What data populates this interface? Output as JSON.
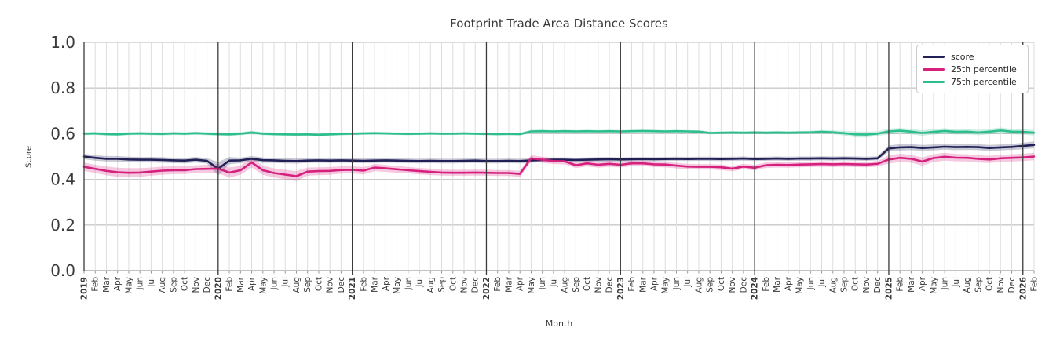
{
  "chart_data": {
    "type": "line",
    "title": "Footprint Trade Area Distance Scores",
    "xlabel": "Month",
    "ylabel": "Score",
    "ylim": [
      0.0,
      1.0
    ],
    "yticks": [
      "0.0",
      "0.2",
      "0.4",
      "0.6",
      "0.8",
      "1.0"
    ],
    "grid": true,
    "legend_position": "upper right",
    "categories": [
      "2019",
      "Feb",
      "Mar",
      "Apr",
      "May",
      "Jun",
      "Jul",
      "Aug",
      "Sep",
      "Oct",
      "Nov",
      "Dec",
      "2020",
      "Feb",
      "Mar",
      "Apr",
      "May",
      "Jun",
      "Jul",
      "Aug",
      "Sep",
      "Oct",
      "Nov",
      "Dec",
      "2021",
      "Feb",
      "Mar",
      "Apr",
      "May",
      "Jun",
      "Jul",
      "Aug",
      "Sep",
      "Oct",
      "Nov",
      "Dec",
      "2022",
      "Feb",
      "Mar",
      "Apr",
      "May",
      "Jun",
      "Jul",
      "Aug",
      "Sep",
      "Oct",
      "Nov",
      "Dec",
      "2023",
      "Feb",
      "Mar",
      "Apr",
      "May",
      "Jun",
      "Jul",
      "Aug",
      "Sep",
      "Oct",
      "Nov",
      "Dec",
      "2024",
      "Feb",
      "Mar",
      "Apr",
      "May",
      "Jun",
      "Jul",
      "Aug",
      "Sep",
      "Oct",
      "Nov",
      "Dec",
      "2025",
      "Feb",
      "Mar",
      "Apr",
      "May",
      "Jun",
      "Jul",
      "Aug",
      "Sep",
      "Oct",
      "Nov",
      "Dec",
      "2026",
      "Feb"
    ],
    "series": [
      {
        "name": "score",
        "color": "#212157",
        "values": [
          0.5,
          0.494,
          0.49,
          0.49,
          0.487,
          0.486,
          0.486,
          0.485,
          0.483,
          0.482,
          0.486,
          0.481,
          0.446,
          0.482,
          0.483,
          0.49,
          0.484,
          0.483,
          0.481,
          0.48,
          0.482,
          0.483,
          0.482,
          0.483,
          0.482,
          0.481,
          0.482,
          0.483,
          0.482,
          0.481,
          0.48,
          0.481,
          0.48,
          0.48,
          0.481,
          0.482,
          0.48,
          0.48,
          0.481,
          0.48,
          0.483,
          0.485,
          0.486,
          0.486,
          0.485,
          0.486,
          0.487,
          0.488,
          0.487,
          0.488,
          0.489,
          0.488,
          0.489,
          0.49,
          0.489,
          0.49,
          0.49,
          0.489,
          0.49,
          0.491,
          0.489,
          0.49,
          0.491,
          0.49,
          0.491,
          0.491,
          0.492,
          0.491,
          0.492,
          0.491,
          0.49,
          0.492,
          0.535,
          0.54,
          0.541,
          0.537,
          0.54,
          0.543,
          0.541,
          0.542,
          0.541,
          0.537,
          0.54,
          0.542,
          0.546,
          0.551
        ],
        "band": [
          0.012,
          0.012,
          0.012,
          0.012,
          0.012,
          0.012,
          0.012,
          0.012,
          0.012,
          0.012,
          0.012,
          0.012,
          0.03,
          0.016,
          0.012,
          0.012,
          0.012,
          0.011,
          0.011,
          0.011,
          0.01,
          0.01,
          0.01,
          0.01,
          0.01,
          0.01,
          0.01,
          0.01,
          0.01,
          0.01,
          0.01,
          0.01,
          0.01,
          0.01,
          0.01,
          0.01,
          0.01,
          0.01,
          0.01,
          0.01,
          0.01,
          0.01,
          0.01,
          0.01,
          0.01,
          0.01,
          0.01,
          0.01,
          0.009,
          0.009,
          0.009,
          0.009,
          0.009,
          0.009,
          0.009,
          0.009,
          0.009,
          0.009,
          0.009,
          0.009,
          0.009,
          0.009,
          0.009,
          0.009,
          0.009,
          0.009,
          0.009,
          0.009,
          0.009,
          0.009,
          0.009,
          0.009,
          0.014,
          0.014,
          0.013,
          0.014,
          0.013,
          0.013,
          0.013,
          0.013,
          0.013,
          0.014,
          0.013,
          0.013,
          0.014,
          0.015
        ]
      },
      {
        "name": "25th percentile",
        "color": "#D6207E",
        "values": [
          0.455,
          0.446,
          0.437,
          0.431,
          0.429,
          0.43,
          0.434,
          0.438,
          0.44,
          0.44,
          0.445,
          0.446,
          0.447,
          0.43,
          0.44,
          0.474,
          0.44,
          0.428,
          0.421,
          0.414,
          0.434,
          0.436,
          0.437,
          0.441,
          0.442,
          0.438,
          0.452,
          0.448,
          0.444,
          0.44,
          0.436,
          0.433,
          0.43,
          0.429,
          0.429,
          0.43,
          0.429,
          0.428,
          0.428,
          0.424,
          0.492,
          0.486,
          0.48,
          0.479,
          0.462,
          0.47,
          0.464,
          0.468,
          0.464,
          0.47,
          0.47,
          0.466,
          0.465,
          0.46,
          0.456,
          0.455,
          0.455,
          0.453,
          0.447,
          0.456,
          0.451,
          0.462,
          0.464,
          0.463,
          0.465,
          0.466,
          0.467,
          0.466,
          0.467,
          0.466,
          0.465,
          0.468,
          0.487,
          0.494,
          0.49,
          0.478,
          0.493,
          0.499,
          0.495,
          0.494,
          0.49,
          0.487,
          0.492,
          0.494,
          0.496,
          0.5
        ],
        "band": [
          0.018,
          0.018,
          0.019,
          0.02,
          0.02,
          0.019,
          0.018,
          0.018,
          0.017,
          0.017,
          0.017,
          0.018,
          0.02,
          0.022,
          0.02,
          0.022,
          0.02,
          0.02,
          0.021,
          0.022,
          0.018,
          0.017,
          0.017,
          0.016,
          0.016,
          0.016,
          0.016,
          0.015,
          0.015,
          0.014,
          0.014,
          0.014,
          0.013,
          0.013,
          0.013,
          0.013,
          0.013,
          0.013,
          0.013,
          0.013,
          0.014,
          0.013,
          0.013,
          0.013,
          0.013,
          0.013,
          0.013,
          0.013,
          0.012,
          0.012,
          0.012,
          0.012,
          0.012,
          0.012,
          0.012,
          0.012,
          0.012,
          0.012,
          0.012,
          0.012,
          0.012,
          0.012,
          0.012,
          0.012,
          0.012,
          0.012,
          0.012,
          0.012,
          0.012,
          0.012,
          0.012,
          0.012,
          0.018,
          0.018,
          0.017,
          0.018,
          0.017,
          0.017,
          0.016,
          0.016,
          0.016,
          0.016,
          0.016,
          0.016,
          0.016,
          0.016
        ]
      },
      {
        "name": "75th percentile",
        "color": "#2CBE8E",
        "values": [
          0.6,
          0.601,
          0.598,
          0.597,
          0.6,
          0.601,
          0.6,
          0.599,
          0.601,
          0.6,
          0.602,
          0.6,
          0.598,
          0.597,
          0.6,
          0.605,
          0.6,
          0.598,
          0.597,
          0.596,
          0.597,
          0.595,
          0.597,
          0.599,
          0.6,
          0.601,
          0.602,
          0.601,
          0.6,
          0.599,
          0.6,
          0.601,
          0.6,
          0.6,
          0.601,
          0.6,
          0.599,
          0.598,
          0.599,
          0.598,
          0.61,
          0.611,
          0.61,
          0.611,
          0.61,
          0.611,
          0.61,
          0.611,
          0.61,
          0.611,
          0.612,
          0.611,
          0.61,
          0.611,
          0.61,
          0.609,
          0.603,
          0.604,
          0.605,
          0.604,
          0.605,
          0.604,
          0.605,
          0.604,
          0.605,
          0.606,
          0.608,
          0.606,
          0.602,
          0.597,
          0.596,
          0.6,
          0.61,
          0.613,
          0.609,
          0.603,
          0.608,
          0.612,
          0.608,
          0.609,
          0.605,
          0.609,
          0.614,
          0.609,
          0.608,
          0.604
        ],
        "band": [
          0.007,
          0.007,
          0.007,
          0.007,
          0.007,
          0.007,
          0.007,
          0.007,
          0.007,
          0.007,
          0.007,
          0.007,
          0.008,
          0.008,
          0.007,
          0.008,
          0.007,
          0.007,
          0.007,
          0.007,
          0.007,
          0.007,
          0.007,
          0.007,
          0.006,
          0.006,
          0.006,
          0.006,
          0.006,
          0.006,
          0.006,
          0.006,
          0.006,
          0.006,
          0.006,
          0.006,
          0.006,
          0.006,
          0.006,
          0.006,
          0.007,
          0.007,
          0.006,
          0.006,
          0.006,
          0.006,
          0.006,
          0.006,
          0.006,
          0.006,
          0.006,
          0.006,
          0.006,
          0.006,
          0.006,
          0.006,
          0.006,
          0.006,
          0.006,
          0.006,
          0.007,
          0.007,
          0.007,
          0.007,
          0.007,
          0.007,
          0.008,
          0.008,
          0.01,
          0.013,
          0.013,
          0.01,
          0.012,
          0.012,
          0.012,
          0.012,
          0.012,
          0.012,
          0.012,
          0.012,
          0.012,
          0.012,
          0.013,
          0.012,
          0.012,
          0.012
        ]
      }
    ]
  }
}
